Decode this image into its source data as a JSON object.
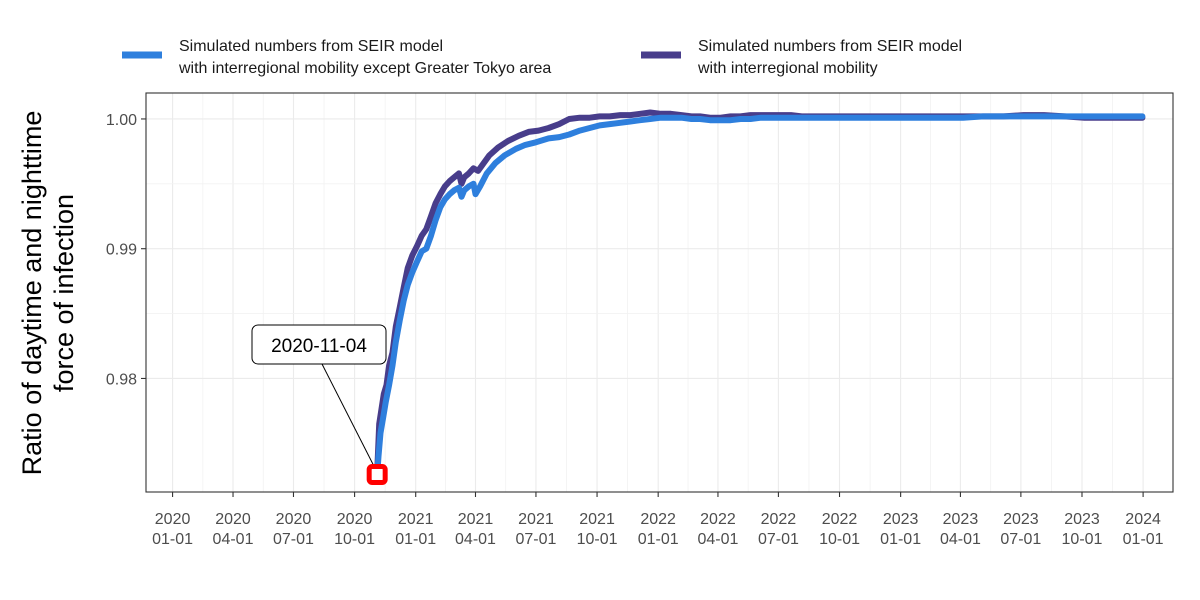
{
  "chart_data": {
    "type": "line",
    "ylabel": [
      "Ratio of daytime and nighttime",
      "force of infection"
    ],
    "xlabel": "",
    "xlim": [
      "2019-11-22",
      "2024-02-15"
    ],
    "ylim": [
      0.97125,
      1.002
    ],
    "grid": true,
    "legend_position": "top",
    "x_ticks": [
      {
        "date": "2020-01-01",
        "label": [
          "2020",
          "01-01"
        ]
      },
      {
        "date": "2020-04-01",
        "label": [
          "2020",
          "04-01"
        ]
      },
      {
        "date": "2020-07-01",
        "label": [
          "2020",
          "07-01"
        ]
      },
      {
        "date": "2020-10-01",
        "label": [
          "2020",
          "10-01"
        ]
      },
      {
        "date": "2021-01-01",
        "label": [
          "2021",
          "01-01"
        ]
      },
      {
        "date": "2021-04-01",
        "label": [
          "2021",
          "04-01"
        ]
      },
      {
        "date": "2021-07-01",
        "label": [
          "2021",
          "07-01"
        ]
      },
      {
        "date": "2021-10-01",
        "label": [
          "2021",
          "10-01"
        ]
      },
      {
        "date": "2022-01-01",
        "label": [
          "2022",
          "01-01"
        ]
      },
      {
        "date": "2022-04-01",
        "label": [
          "2022",
          "04-01"
        ]
      },
      {
        "date": "2022-07-01",
        "label": [
          "2022",
          "07-01"
        ]
      },
      {
        "date": "2022-10-01",
        "label": [
          "2022",
          "10-01"
        ]
      },
      {
        "date": "2023-01-01",
        "label": [
          "2023",
          "01-01"
        ]
      },
      {
        "date": "2023-04-01",
        "label": [
          "2023",
          "04-01"
        ]
      },
      {
        "date": "2023-07-01",
        "label": [
          "2023",
          "07-01"
        ]
      },
      {
        "date": "2023-10-01",
        "label": [
          "2023",
          "10-01"
        ]
      },
      {
        "date": "2024-01-01",
        "label": [
          "2024",
          "01-01"
        ]
      }
    ],
    "y_ticks": [
      {
        "value": 0.98,
        "label": "0.98"
      },
      {
        "value": 0.99,
        "label": "0.99"
      },
      {
        "value": 1.0,
        "label": "1.00"
      }
    ],
    "series": [
      {
        "name": [
          "Simulated numbers from SEIR model",
          "with interregional mobility"
        ],
        "color": "#483d8b",
        "points": [
          [
            "2020-11-04",
            0.9728
          ],
          [
            "2020-11-07",
            0.9765
          ],
          [
            "2020-11-10",
            0.9775
          ],
          [
            "2020-11-14",
            0.9788
          ],
          [
            "2020-11-18",
            0.9795
          ],
          [
            "2020-11-22",
            0.981
          ],
          [
            "2020-11-27",
            0.982
          ],
          [
            "2020-12-02",
            0.984
          ],
          [
            "2020-12-08",
            0.9855
          ],
          [
            "2020-12-14",
            0.987
          ],
          [
            "2020-12-20",
            0.9885
          ],
          [
            "2020-12-27",
            0.9895
          ],
          [
            "2021-01-03",
            0.9902
          ],
          [
            "2021-01-10",
            0.991
          ],
          [
            "2021-01-17",
            0.9915
          ],
          [
            "2021-01-24",
            0.9925
          ],
          [
            "2021-01-31",
            0.9935
          ],
          [
            "2021-02-07",
            0.9942
          ],
          [
            "2021-02-14",
            0.9948
          ],
          [
            "2021-02-21",
            0.9952
          ],
          [
            "2021-02-28",
            0.9955
          ],
          [
            "2021-03-07",
            0.9958
          ],
          [
            "2021-03-11",
            0.995
          ],
          [
            "2021-03-15",
            0.9955
          ],
          [
            "2021-03-22",
            0.9958
          ],
          [
            "2021-03-29",
            0.9962
          ],
          [
            "2021-04-05",
            0.996
          ],
          [
            "2021-04-12",
            0.9965
          ],
          [
            "2021-04-22",
            0.9972
          ],
          [
            "2021-05-05",
            0.9978
          ],
          [
            "2021-05-20",
            0.9983
          ],
          [
            "2021-06-05",
            0.9987
          ],
          [
            "2021-06-20",
            0.999
          ],
          [
            "2021-07-05",
            0.9991
          ],
          [
            "2021-07-20",
            0.9993
          ],
          [
            "2021-08-05",
            0.9996
          ],
          [
            "2021-08-20",
            1.0
          ],
          [
            "2021-09-05",
            1.0001
          ],
          [
            "2021-09-20",
            1.0001
          ],
          [
            "2021-10-05",
            1.0002
          ],
          [
            "2021-10-20",
            1.0002
          ],
          [
            "2021-11-05",
            1.0003
          ],
          [
            "2021-11-20",
            1.0003
          ],
          [
            "2021-12-05",
            1.0004
          ],
          [
            "2021-12-20",
            1.0005
          ],
          [
            "2022-01-05",
            1.0004
          ],
          [
            "2022-01-20",
            1.0004
          ],
          [
            "2022-02-05",
            1.0003
          ],
          [
            "2022-02-20",
            1.0002
          ],
          [
            "2022-03-05",
            1.0002
          ],
          [
            "2022-03-20",
            1.0001
          ],
          [
            "2022-04-05",
            1.0001
          ],
          [
            "2022-04-20",
            1.0002
          ],
          [
            "2022-05-05",
            1.0002
          ],
          [
            "2022-05-20",
            1.0003
          ],
          [
            "2022-06-05",
            1.0003
          ],
          [
            "2022-06-20",
            1.0003
          ],
          [
            "2022-07-05",
            1.0003
          ],
          [
            "2022-07-20",
            1.0003
          ],
          [
            "2022-08-05",
            1.0002
          ],
          [
            "2022-08-20",
            1.0002
          ],
          [
            "2022-09-05",
            1.0002
          ],
          [
            "2022-09-20",
            1.0002
          ],
          [
            "2022-10-05",
            1.0002
          ],
          [
            "2022-11-05",
            1.0002
          ],
          [
            "2022-12-05",
            1.0002
          ],
          [
            "2023-01-05",
            1.0002
          ],
          [
            "2023-02-05",
            1.0002
          ],
          [
            "2023-03-05",
            1.0002
          ],
          [
            "2023-04-05",
            1.0002
          ],
          [
            "2023-05-05",
            1.0002
          ],
          [
            "2023-06-05",
            1.0002
          ],
          [
            "2023-07-05",
            1.0003
          ],
          [
            "2023-08-05",
            1.0003
          ],
          [
            "2023-09-05",
            1.0002
          ],
          [
            "2023-10-05",
            1.0001
          ],
          [
            "2023-11-05",
            1.0001
          ],
          [
            "2023-12-05",
            1.0001
          ],
          [
            "2023-12-31",
            1.0001
          ]
        ]
      },
      {
        "name": [
          "Simulated numbers from SEIR model",
          "with interregional mobility except Greater Tokyo area"
        ],
        "color": "#2e7fdd",
        "points": [
          [
            "2020-11-04",
            0.9726
          ],
          [
            "2020-11-06",
            0.974
          ],
          [
            "2020-11-09",
            0.9758
          ],
          [
            "2020-11-13",
            0.977
          ],
          [
            "2020-11-17",
            0.9782
          ],
          [
            "2020-11-22",
            0.9795
          ],
          [
            "2020-11-27",
            0.981
          ],
          [
            "2020-12-02",
            0.9828
          ],
          [
            "2020-12-08",
            0.9845
          ],
          [
            "2020-12-14",
            0.986
          ],
          [
            "2020-12-20",
            0.9872
          ],
          [
            "2020-12-27",
            0.9882
          ],
          [
            "2021-01-03",
            0.989
          ],
          [
            "2021-01-10",
            0.9898
          ],
          [
            "2021-01-17",
            0.99
          ],
          [
            "2021-01-24",
            0.991
          ],
          [
            "2021-01-31",
            0.9922
          ],
          [
            "2021-02-07",
            0.9932
          ],
          [
            "2021-02-14",
            0.9938
          ],
          [
            "2021-02-21",
            0.9942
          ],
          [
            "2021-02-28",
            0.9945
          ],
          [
            "2021-03-07",
            0.9947
          ],
          [
            "2021-03-11",
            0.994
          ],
          [
            "2021-03-15",
            0.9945
          ],
          [
            "2021-03-22",
            0.9948
          ],
          [
            "2021-03-29",
            0.995
          ],
          [
            "2021-04-01",
            0.9942
          ],
          [
            "2021-04-08",
            0.9948
          ],
          [
            "2021-04-18",
            0.9958
          ],
          [
            "2021-05-01",
            0.9966
          ],
          [
            "2021-05-15",
            0.9972
          ],
          [
            "2021-06-01",
            0.9977
          ],
          [
            "2021-06-15",
            0.998
          ],
          [
            "2021-07-01",
            0.9982
          ],
          [
            "2021-07-20",
            0.9985
          ],
          [
            "2021-08-05",
            0.9986
          ],
          [
            "2021-08-20",
            0.9988
          ],
          [
            "2021-09-05",
            0.9991
          ],
          [
            "2021-09-20",
            0.9993
          ],
          [
            "2021-10-05",
            0.9995
          ],
          [
            "2021-10-20",
            0.9996
          ],
          [
            "2021-11-05",
            0.9997
          ],
          [
            "2021-11-20",
            0.9998
          ],
          [
            "2021-12-05",
            0.9999
          ],
          [
            "2021-12-20",
            1.0
          ],
          [
            "2022-01-05",
            1.0001
          ],
          [
            "2022-01-20",
            1.0001
          ],
          [
            "2022-02-05",
            1.0001
          ],
          [
            "2022-02-20",
            1.0
          ],
          [
            "2022-03-05",
            1.0
          ],
          [
            "2022-03-20",
            0.9999
          ],
          [
            "2022-04-05",
            0.9999
          ],
          [
            "2022-04-20",
            0.9999
          ],
          [
            "2022-05-05",
            1.0
          ],
          [
            "2022-05-20",
            1.0
          ],
          [
            "2022-06-05",
            1.0001
          ],
          [
            "2022-06-20",
            1.0001
          ],
          [
            "2022-07-05",
            1.0001
          ],
          [
            "2022-07-20",
            1.0001
          ],
          [
            "2022-08-05",
            1.0001
          ],
          [
            "2022-08-20",
            1.0001
          ],
          [
            "2022-09-05",
            1.0001
          ],
          [
            "2022-09-20",
            1.0001
          ],
          [
            "2022-10-05",
            1.0001
          ],
          [
            "2022-11-05",
            1.0001
          ],
          [
            "2022-12-05",
            1.0001
          ],
          [
            "2023-01-05",
            1.0001
          ],
          [
            "2023-02-05",
            1.0001
          ],
          [
            "2023-03-05",
            1.0001
          ],
          [
            "2023-04-05",
            1.0001
          ],
          [
            "2023-05-05",
            1.0002
          ],
          [
            "2023-06-05",
            1.0002
          ],
          [
            "2023-07-05",
            1.0002
          ],
          [
            "2023-08-05",
            1.0002
          ],
          [
            "2023-09-05",
            1.0002
          ],
          [
            "2023-10-05",
            1.0002
          ],
          [
            "2023-11-05",
            1.0002
          ],
          [
            "2023-12-05",
            1.0002
          ],
          [
            "2023-12-31",
            1.0002
          ]
        ]
      }
    ],
    "legend_order": [
      1,
      0
    ],
    "annotation": {
      "label": "2020-11-04",
      "x": "2020-11-04",
      "y": 0.9726,
      "marker_color": "#ff0000"
    }
  }
}
